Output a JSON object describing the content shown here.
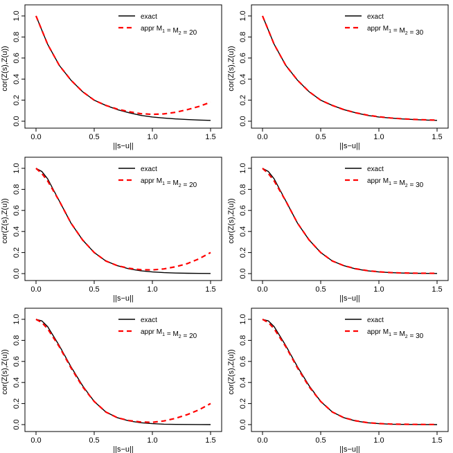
{
  "chart_data": [
    {
      "type": "line",
      "xlabel": "||s−u||",
      "ylabel": "cor(Z(s),Z(u))",
      "xlim": [
        0,
        1.5
      ],
      "ylim": [
        0,
        1.0
      ],
      "xticks": [
        "0.0",
        "0.5",
        "1.0",
        "1.5"
      ],
      "yticks": [
        "0.0",
        "0.2",
        "0.4",
        "0.6",
        "0.8",
        "1.0"
      ],
      "legend_position": "top-right",
      "series": [
        {
          "name": "exact",
          "color": "#000000",
          "dash": "solid",
          "x": [
            0,
            0.1,
            0.2,
            0.3,
            0.4,
            0.5,
            0.6,
            0.7,
            0.8,
            0.9,
            1.0,
            1.1,
            1.2,
            1.3,
            1.4,
            1.5
          ],
          "y": [
            1.0,
            0.73,
            0.53,
            0.39,
            0.28,
            0.2,
            0.15,
            0.11,
            0.08,
            0.055,
            0.04,
            0.03,
            0.022,
            0.016,
            0.011,
            0.008
          ]
        },
        {
          "name": "appr  M1 = M2 = 20",
          "color": "#ff0000",
          "dash": "dashed",
          "x": [
            0,
            0.1,
            0.2,
            0.3,
            0.4,
            0.5,
            0.6,
            0.7,
            0.8,
            0.9,
            1.0,
            1.1,
            1.2,
            1.3,
            1.4,
            1.5
          ],
          "y": [
            1.0,
            0.73,
            0.53,
            0.39,
            0.28,
            0.2,
            0.15,
            0.115,
            0.09,
            0.072,
            0.065,
            0.07,
            0.085,
            0.11,
            0.14,
            0.18
          ]
        }
      ]
    },
    {
      "type": "line",
      "xlabel": "||s−u||",
      "ylabel": "cor(Z(s),Z(u))",
      "xlim": [
        0,
        1.5
      ],
      "ylim": [
        0,
        1.0
      ],
      "xticks": [
        "0.0",
        "0.5",
        "1.0",
        "1.5"
      ],
      "yticks": [
        "0.0",
        "0.2",
        "0.4",
        "0.6",
        "0.8",
        "1.0"
      ],
      "legend_position": "top-right",
      "series": [
        {
          "name": "exact",
          "color": "#000000",
          "dash": "solid",
          "x": [
            0,
            0.1,
            0.2,
            0.3,
            0.4,
            0.5,
            0.6,
            0.7,
            0.8,
            0.9,
            1.0,
            1.1,
            1.2,
            1.3,
            1.4,
            1.5
          ],
          "y": [
            1.0,
            0.73,
            0.53,
            0.39,
            0.28,
            0.2,
            0.15,
            0.11,
            0.08,
            0.055,
            0.04,
            0.03,
            0.022,
            0.016,
            0.011,
            0.008
          ]
        },
        {
          "name": "appr  M1 = M2 = 30",
          "color": "#ff0000",
          "dash": "dashed",
          "x": [
            0,
            0.1,
            0.2,
            0.3,
            0.4,
            0.5,
            0.6,
            0.7,
            0.8,
            0.9,
            1.0,
            1.1,
            1.2,
            1.3,
            1.4,
            1.5
          ],
          "y": [
            1.0,
            0.73,
            0.53,
            0.39,
            0.28,
            0.2,
            0.15,
            0.11,
            0.08,
            0.058,
            0.042,
            0.031,
            0.023,
            0.017,
            0.013,
            0.01
          ]
        }
      ]
    },
    {
      "type": "line",
      "xlabel": "||s−u||",
      "ylabel": "cor(Z(s),Z(u))",
      "xlim": [
        0,
        1.5
      ],
      "ylim": [
        0,
        1.0
      ],
      "xticks": [
        "0.0",
        "0.5",
        "1.0",
        "1.5"
      ],
      "yticks": [
        "0.0",
        "0.2",
        "0.4",
        "0.6",
        "0.8",
        "1.0"
      ],
      "legend_position": "top-right",
      "series": [
        {
          "name": "exact",
          "color": "#000000",
          "dash": "solid",
          "x": [
            0,
            0.05,
            0.1,
            0.2,
            0.3,
            0.4,
            0.5,
            0.6,
            0.7,
            0.8,
            0.9,
            1.0,
            1.1,
            1.2,
            1.3,
            1.4,
            1.5
          ],
          "y": [
            1.0,
            0.97,
            0.9,
            0.69,
            0.48,
            0.32,
            0.2,
            0.12,
            0.075,
            0.045,
            0.027,
            0.016,
            0.009,
            0.005,
            0.003,
            0.002,
            0.001
          ]
        },
        {
          "name": "appr  M1 = M2 = 20",
          "color": "#ff0000",
          "dash": "dashed",
          "x": [
            0,
            0.05,
            0.1,
            0.2,
            0.3,
            0.4,
            0.5,
            0.6,
            0.7,
            0.8,
            0.9,
            1.0,
            1.1,
            1.2,
            1.3,
            1.4,
            1.5
          ],
          "y": [
            1.0,
            0.95,
            0.88,
            0.69,
            0.48,
            0.32,
            0.2,
            0.12,
            0.075,
            0.05,
            0.037,
            0.035,
            0.045,
            0.065,
            0.095,
            0.14,
            0.2
          ]
        }
      ]
    },
    {
      "type": "line",
      "xlabel": "||s−u||",
      "ylabel": "cor(Z(s),Z(u))",
      "xlim": [
        0,
        1.5
      ],
      "ylim": [
        0,
        1.0
      ],
      "xticks": [
        "0.0",
        "0.5",
        "1.0",
        "1.5"
      ],
      "yticks": [
        "0.0",
        "0.2",
        "0.4",
        "0.6",
        "0.8",
        "1.0"
      ],
      "legend_position": "top-right",
      "series": [
        {
          "name": "exact",
          "color": "#000000",
          "dash": "solid",
          "x": [
            0,
            0.05,
            0.1,
            0.2,
            0.3,
            0.4,
            0.5,
            0.6,
            0.7,
            0.8,
            0.9,
            1.0,
            1.1,
            1.2,
            1.3,
            1.4,
            1.5
          ],
          "y": [
            1.0,
            0.97,
            0.9,
            0.69,
            0.48,
            0.32,
            0.2,
            0.12,
            0.075,
            0.045,
            0.027,
            0.016,
            0.009,
            0.005,
            0.003,
            0.002,
            0.001
          ]
        },
        {
          "name": "appr  M1 = M2 = 30",
          "color": "#ff0000",
          "dash": "dashed",
          "x": [
            0,
            0.05,
            0.1,
            0.2,
            0.3,
            0.4,
            0.5,
            0.6,
            0.7,
            0.8,
            0.9,
            1.0,
            1.1,
            1.2,
            1.3,
            1.4,
            1.5
          ],
          "y": [
            1.0,
            0.95,
            0.88,
            0.69,
            0.48,
            0.32,
            0.2,
            0.12,
            0.075,
            0.046,
            0.028,
            0.017,
            0.01,
            0.006,
            0.004,
            0.003,
            0.002
          ]
        }
      ]
    },
    {
      "type": "line",
      "xlabel": "||s−u||",
      "ylabel": "cor(Z(s),Z(u))",
      "xlim": [
        0,
        1.5
      ],
      "ylim": [
        0,
        1.0
      ],
      "xticks": [
        "0.0",
        "0.5",
        "1.0",
        "1.5"
      ],
      "yticks": [
        "0.0",
        "0.2",
        "0.4",
        "0.6",
        "0.8",
        "1.0"
      ],
      "legend_position": "top-right",
      "series": [
        {
          "name": "exact",
          "color": "#000000",
          "dash": "solid",
          "x": [
            0,
            0.05,
            0.1,
            0.2,
            0.3,
            0.4,
            0.5,
            0.6,
            0.7,
            0.8,
            0.9,
            1.0,
            1.1,
            1.2,
            1.3,
            1.4,
            1.5
          ],
          "y": [
            1.0,
            0.985,
            0.93,
            0.75,
            0.55,
            0.37,
            0.22,
            0.12,
            0.065,
            0.035,
            0.018,
            0.009,
            0.004,
            0.002,
            0.001,
            0.0005,
            0.0002
          ]
        },
        {
          "name": "appr  M1 = M2 = 20",
          "color": "#ff0000",
          "dash": "dashed",
          "x": [
            0,
            0.05,
            0.1,
            0.2,
            0.3,
            0.4,
            0.5,
            0.6,
            0.7,
            0.8,
            0.9,
            1.0,
            1.1,
            1.2,
            1.3,
            1.4,
            1.5
          ],
          "y": [
            1.0,
            0.97,
            0.91,
            0.74,
            0.54,
            0.36,
            0.22,
            0.12,
            0.065,
            0.038,
            0.025,
            0.022,
            0.035,
            0.06,
            0.095,
            0.14,
            0.2
          ]
        }
      ]
    },
    {
      "type": "line",
      "xlabel": "||s−u||",
      "ylabel": "cor(Z(s),Z(u))",
      "xlim": [
        0,
        1.5
      ],
      "ylim": [
        0,
        1.0
      ],
      "xticks": [
        "0.0",
        "0.5",
        "1.0",
        "1.5"
      ],
      "yticks": [
        "0.0",
        "0.2",
        "0.4",
        "0.6",
        "0.8",
        "1.0"
      ],
      "legend_position": "top-right",
      "series": [
        {
          "name": "exact",
          "color": "#000000",
          "dash": "solid",
          "x": [
            0,
            0.05,
            0.1,
            0.2,
            0.3,
            0.4,
            0.5,
            0.6,
            0.7,
            0.8,
            0.9,
            1.0,
            1.1,
            1.2,
            1.3,
            1.4,
            1.5
          ],
          "y": [
            1.0,
            0.985,
            0.93,
            0.75,
            0.55,
            0.37,
            0.22,
            0.12,
            0.065,
            0.035,
            0.018,
            0.009,
            0.004,
            0.002,
            0.001,
            0.0005,
            0.0002
          ]
        },
        {
          "name": "appr  M1 = M2 = 30",
          "color": "#ff0000",
          "dash": "dashed",
          "x": [
            0,
            0.05,
            0.1,
            0.2,
            0.3,
            0.4,
            0.5,
            0.6,
            0.7,
            0.8,
            0.9,
            1.0,
            1.1,
            1.2,
            1.3,
            1.4,
            1.5
          ],
          "y": [
            1.0,
            0.97,
            0.91,
            0.74,
            0.54,
            0.36,
            0.22,
            0.12,
            0.065,
            0.036,
            0.019,
            0.01,
            0.005,
            0.003,
            0.002,
            0.001,
            0.001
          ]
        }
      ]
    }
  ]
}
